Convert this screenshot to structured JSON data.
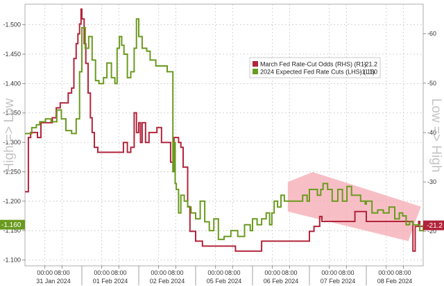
{
  "chart_data": {
    "type": "line",
    "title": "",
    "left_axis": {
      "label": "High => Low",
      "range": [
        -1.09,
        -1.535
      ],
      "ticks": [
        "-1.500",
        "-1.450",
        "-1.400",
        "-1.350",
        "-1.300",
        "-1.250",
        "-1.200",
        "-1.150",
        "-1.100"
      ],
      "tick_values": [
        -1.5,
        -1.45,
        -1.4,
        -1.35,
        -1.3,
        -1.25,
        -1.2,
        -1.15,
        -1.1
      ],
      "last_value_label": "-1.160"
    },
    "right_axis": {
      "label": "Low => High",
      "range": [
        13,
        66
      ],
      "ticks": [
        "-60",
        "-50",
        "-40",
        "-30",
        "-20"
      ],
      "tick_values": [
        60,
        50,
        40,
        30,
        20
      ],
      "last_value_label": "-21.2"
    },
    "x_axis": {
      "days": [
        "31 Jan 2024",
        "01 Feb 2024",
        "02 Feb 2024",
        "05 Feb 2024",
        "06 Feb 2024",
        "07 Feb 2024",
        "08 Feb 2024"
      ],
      "tick_label_1": "00:00",
      "tick_label_2": "08:00",
      "domain": [
        0,
        7
      ]
    },
    "legend": {
      "placement": "top-right",
      "entries": [
        {
          "label": "March Fed Rate-Cut Odds (RHS) (R1)",
          "value": "-21.2",
          "color": "#b1243a"
        },
        {
          "label": "2024 Expected Fed Rate Cuts (LHS) (L1)",
          "value": "-1.160",
          "color": "#6a9a1f"
        }
      ]
    },
    "grid": true,
    "colors": {
      "red": "#b1243a",
      "green": "#6a9a1f",
      "highlight": "#f4a9b2"
    },
    "series": [
      {
        "name": "March Fed Rate-Cut Odds (RHS) (R1)",
        "axis": "right",
        "x": [
          0.0,
          0.06,
          0.1,
          0.22,
          0.28,
          0.34,
          0.48,
          0.55,
          0.62,
          0.7,
          0.76,
          0.82,
          0.86,
          0.9,
          0.93,
          0.96,
          0.985,
          1.0,
          1.04,
          1.07,
          1.11,
          1.15,
          1.18,
          1.22,
          1.28,
          1.4,
          1.58,
          1.66,
          1.73,
          1.8,
          1.86,
          1.92,
          1.96,
          2.0,
          2.03,
          2.06,
          2.12,
          2.18,
          2.26,
          2.32,
          2.4,
          2.48,
          2.56,
          2.62,
          2.7,
          2.74,
          2.78,
          2.82,
          2.86,
          2.9,
          3.0,
          3.12,
          3.28,
          3.42,
          3.56,
          3.7,
          3.84,
          3.92,
          4.0,
          4.08,
          4.16,
          4.24,
          4.32,
          4.4,
          4.48,
          4.56,
          4.64,
          4.68,
          4.7,
          4.75,
          4.8,
          4.86,
          4.92,
          5.0,
          5.08,
          5.14,
          5.18,
          5.22,
          5.28,
          5.4,
          5.6,
          5.72,
          5.8,
          5.86,
          5.92,
          6.0,
          6.06,
          6.1,
          6.16,
          6.24,
          6.32,
          6.4,
          6.48,
          6.52,
          6.58,
          6.66,
          6.74,
          6.78,
          6.82,
          6.86,
          6.92,
          6.94,
          7.0
        ],
        "values": [
          28,
          39,
          40,
          39,
          42,
          42,
          43,
          45,
          46,
          46,
          48,
          49,
          55,
          58,
          60,
          62,
          65,
          63,
          58,
          54,
          48,
          43,
          40,
          37,
          36,
          36,
          36,
          36,
          38,
          36,
          37,
          44,
          40,
          42,
          38,
          42,
          38,
          40,
          40,
          41,
          38,
          38,
          34,
          39,
          38,
          37,
          33,
          33,
          25,
          20,
          18,
          17,
          17,
          17,
          17,
          16,
          16,
          16,
          16,
          16,
          18,
          18,
          18,
          18,
          18,
          18,
          18,
          18,
          18,
          18,
          18,
          18,
          18,
          20,
          21,
          21,
          23,
          22,
          22,
          22,
          22,
          22,
          24,
          24,
          24,
          22,
          22,
          22,
          22,
          22,
          22,
          22,
          22,
          22,
          22,
          22,
          22,
          22,
          16,
          21,
          22,
          21,
          21.2
        ]
      },
      {
        "name": "2024 Expected Fed Rate Cuts (LHS) (L1)",
        "axis": "left",
        "x": [
          0.0,
          0.12,
          0.2,
          0.26,
          0.36,
          0.46,
          0.56,
          0.64,
          0.72,
          0.82,
          0.9,
          0.96,
          1.0,
          1.06,
          1.12,
          1.18,
          1.24,
          1.3,
          1.38,
          1.44,
          1.52,
          1.58,
          1.62,
          1.66,
          1.7,
          1.74,
          1.8,
          1.86,
          1.92,
          1.96,
          2.0,
          2.06,
          2.14,
          2.2,
          2.3,
          2.4,
          2.5,
          2.56,
          2.6,
          2.62,
          2.64,
          2.66,
          2.7,
          2.74,
          2.8,
          2.86,
          2.92,
          3.0,
          3.08,
          3.16,
          3.24,
          3.32,
          3.4,
          3.5,
          3.62,
          3.74,
          3.86,
          3.96,
          4.0,
          4.08,
          4.16,
          4.24,
          4.3,
          4.34,
          4.38,
          4.44,
          4.5,
          4.56,
          4.64,
          4.72,
          4.8,
          4.88,
          4.96,
          5.0,
          5.08,
          5.14,
          5.2,
          5.24,
          5.28,
          5.32,
          5.4,
          5.5,
          5.58,
          5.66,
          5.74,
          5.82,
          5.9,
          5.98,
          6.0,
          6.1,
          6.2,
          6.3,
          6.4,
          6.5,
          6.58,
          6.64,
          6.7,
          6.76,
          6.82,
          6.88,
          6.94,
          7.0
        ],
        "values": [
          -1.315,
          -1.325,
          -1.33,
          -1.335,
          -1.34,
          -1.335,
          -1.355,
          -1.34,
          -1.32,
          -1.315,
          -1.34,
          -1.42,
          -1.495,
          -1.46,
          -1.48,
          -1.44,
          -1.405,
          -1.4,
          -1.41,
          -1.435,
          -1.41,
          -1.4,
          -1.46,
          -1.48,
          -1.465,
          -1.45,
          -1.41,
          -1.42,
          -1.46,
          -1.51,
          -1.48,
          -1.46,
          -1.455,
          -1.44,
          -1.43,
          -1.43,
          -1.42,
          -1.42,
          -1.25,
          -1.3,
          -1.23,
          -1.22,
          -1.18,
          -1.21,
          -1.2,
          -1.19,
          -1.18,
          -1.17,
          -1.2,
          -1.165,
          -1.15,
          -1.17,
          -1.135,
          -1.14,
          -1.15,
          -1.14,
          -1.16,
          -1.15,
          -1.17,
          -1.16,
          -1.17,
          -1.18,
          -1.16,
          -1.18,
          -1.2,
          -1.19,
          -1.21,
          -1.2,
          -1.2,
          -1.2,
          -1.2,
          -1.21,
          -1.2,
          -1.22,
          -1.22,
          -1.21,
          -1.22,
          -1.23,
          -1.23,
          -1.22,
          -1.2,
          -1.22,
          -1.2,
          -1.225,
          -1.21,
          -1.21,
          -1.2,
          -1.195,
          -1.2,
          -1.18,
          -1.185,
          -1.18,
          -1.19,
          -1.17,
          -1.18,
          -1.175,
          -1.16,
          -1.165,
          -1.16,
          -1.16,
          -1.15,
          -1.16
        ]
      }
    ]
  }
}
